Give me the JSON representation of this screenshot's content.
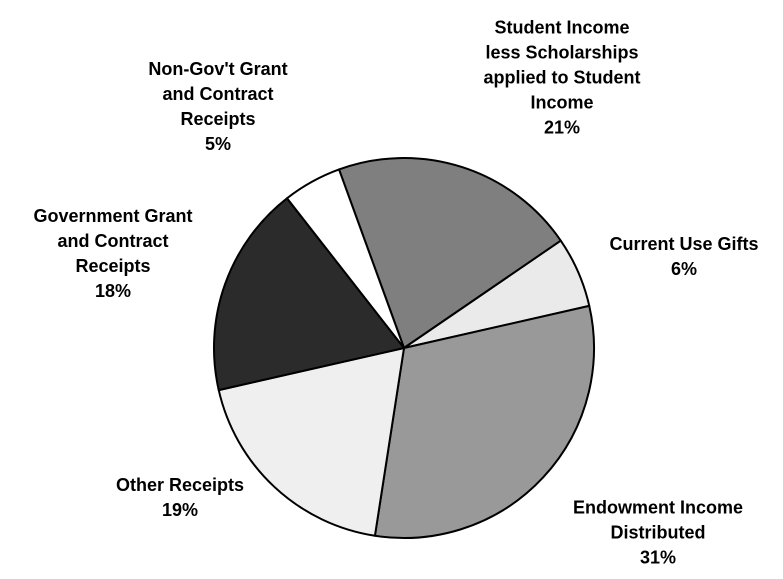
{
  "chart_data": {
    "type": "pie",
    "start_angle_deg": 340,
    "direction": "clockwise",
    "slices": [
      {
        "name": [
          "Student Income",
          "less Scholarships",
          "applied to Student",
          "Income"
        ],
        "value": 21,
        "value_label": "21%",
        "color": "#7f7f7f"
      },
      {
        "name": [
          "Current Use Gifts"
        ],
        "value": 6,
        "value_label": "6%",
        "color": "#eaeaea"
      },
      {
        "name": [
          "Endowment Income",
          "Distributed"
        ],
        "value": 31,
        "value_label": "31%",
        "color": "#999999"
      },
      {
        "name": [
          "Other Receipts"
        ],
        "value": 19,
        "value_label": "19%",
        "color": "#efefef"
      },
      {
        "name": [
          "Government Grant",
          "and Contract",
          "Receipts"
        ],
        "value": 18,
        "value_label": "18%",
        "color": "#2b2b2b"
      },
      {
        "name": [
          "Non-Gov't Grant",
          "and Contract",
          "Receipts"
        ],
        "value": 5,
        "value_label": "5%",
        "color": "#ffffff"
      }
    ]
  }
}
